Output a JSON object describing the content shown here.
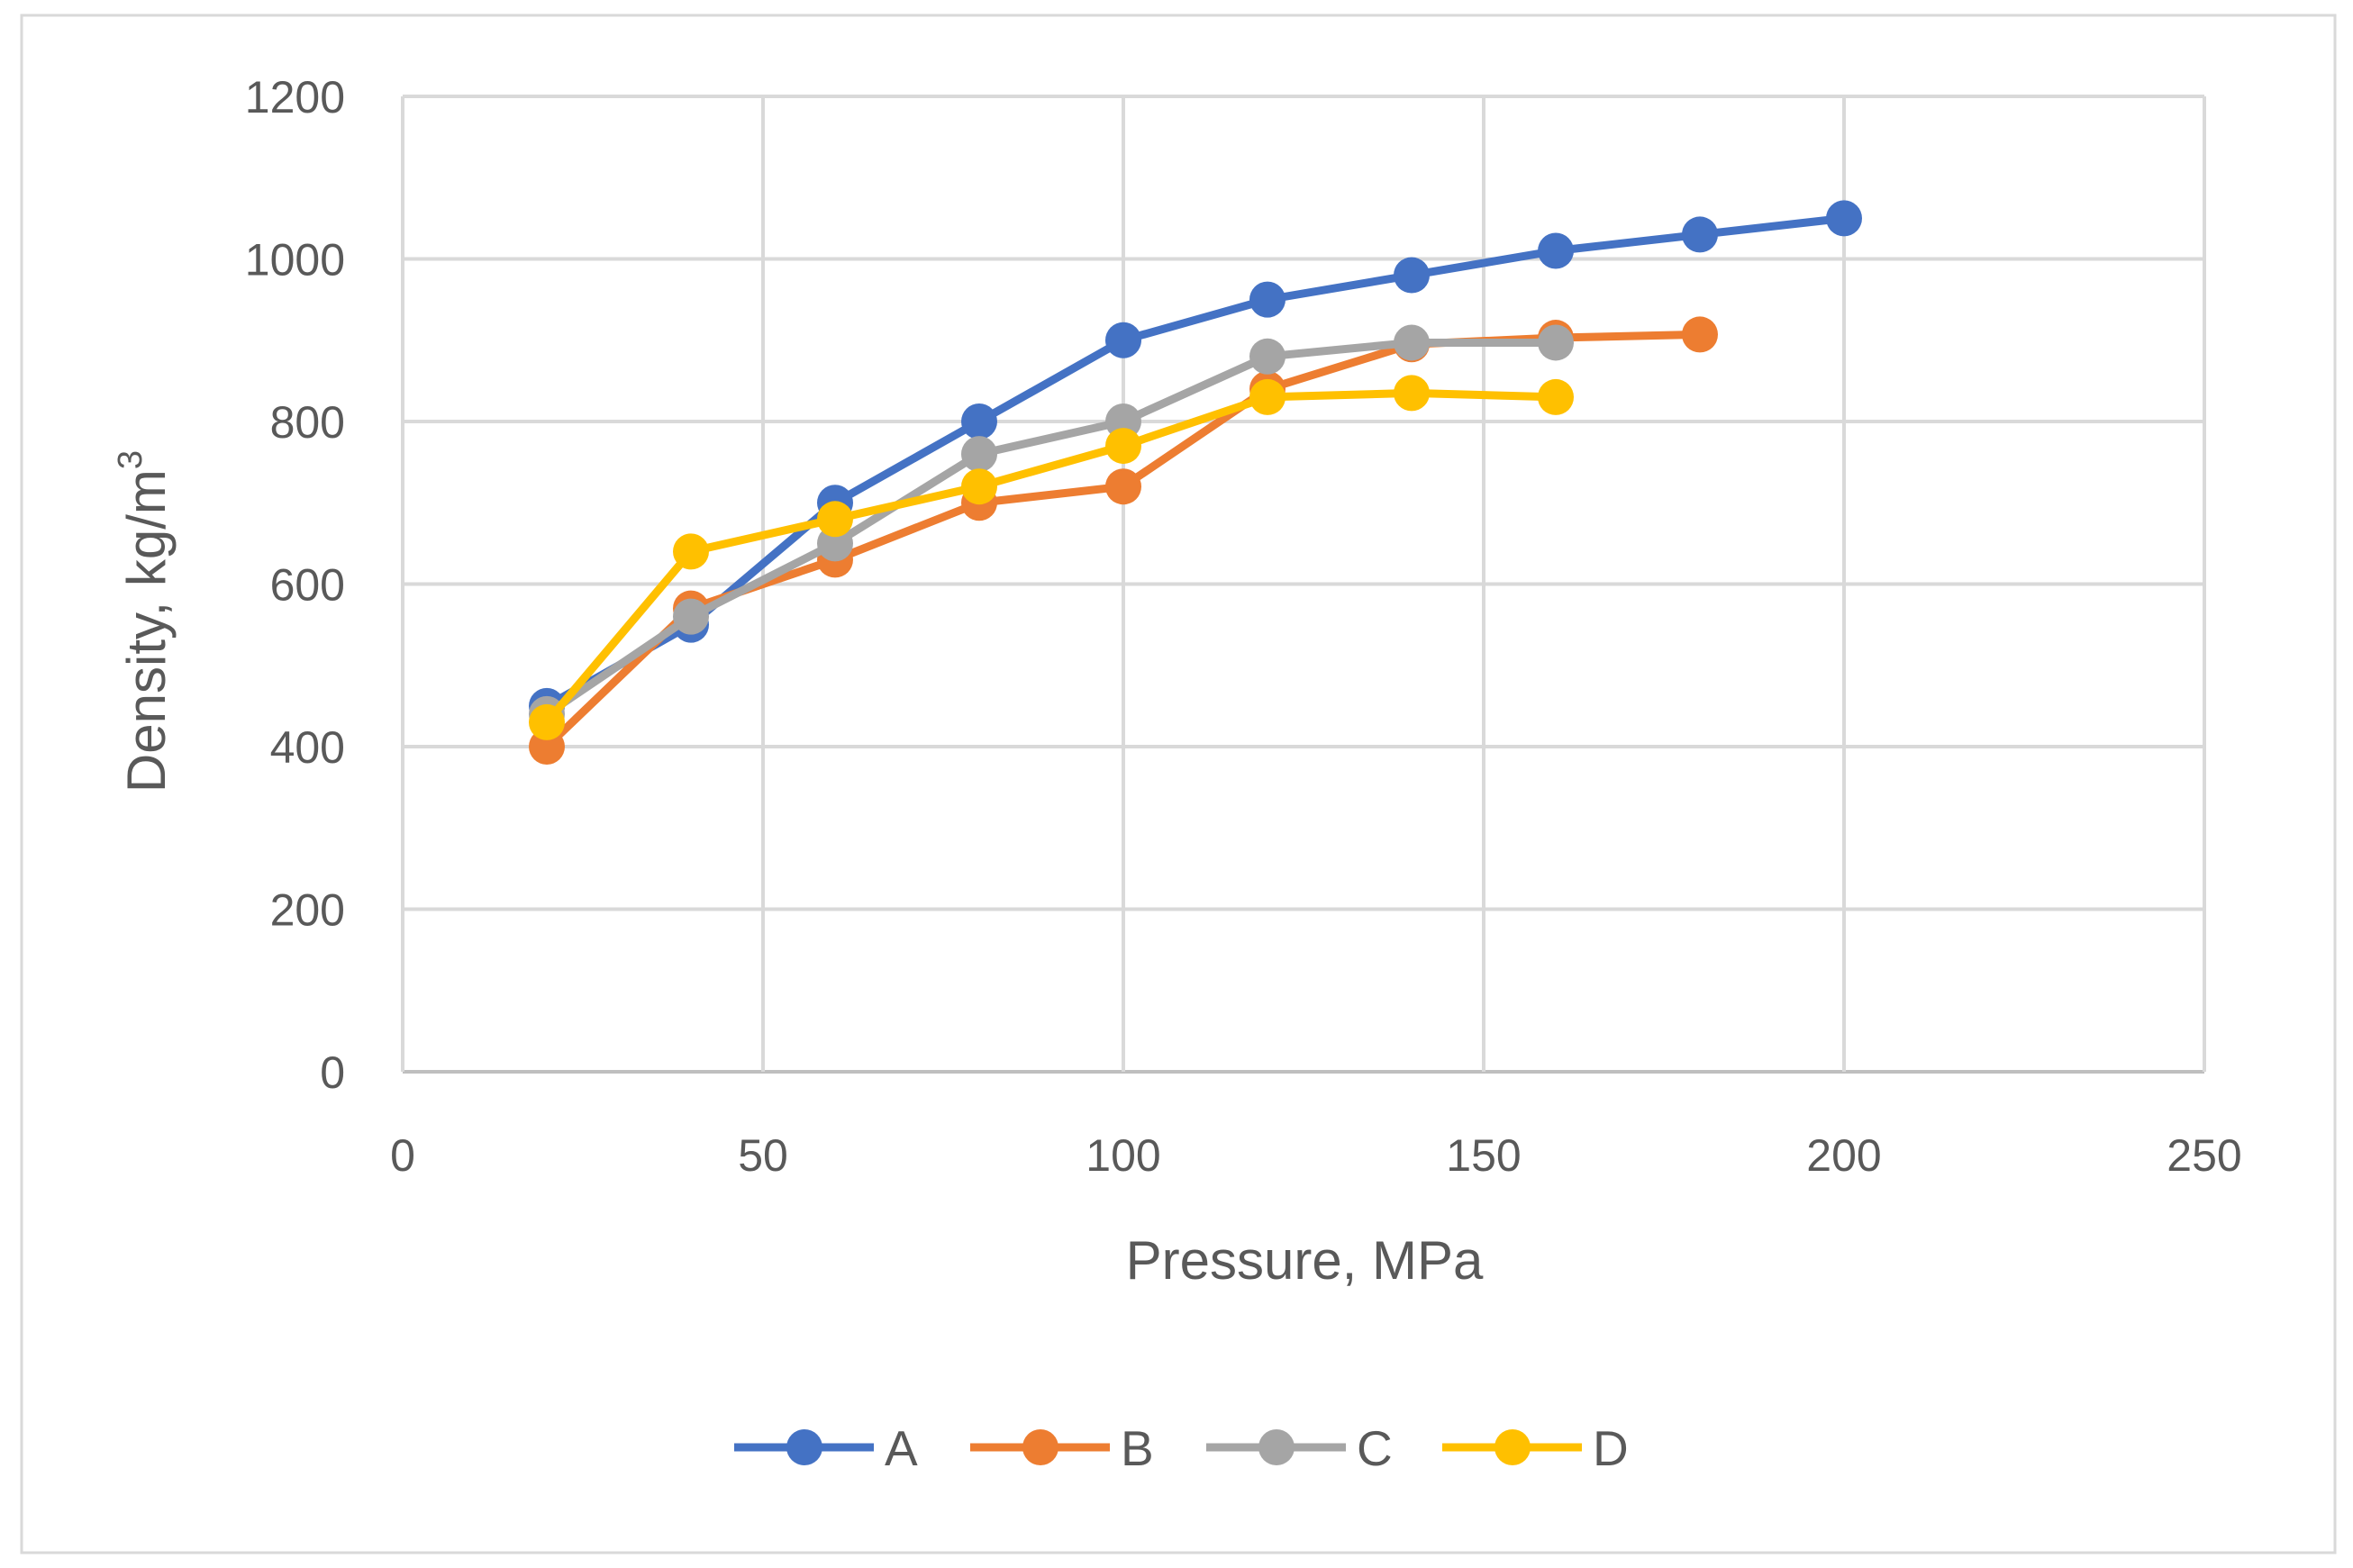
{
  "chart_data": {
    "type": "line",
    "title": "",
    "xlabel": "Pressure, MPa",
    "ylabel_main": "Density, kg/m",
    "ylabel_sup": "3",
    "xlim": [
      0,
      250
    ],
    "ylim": [
      0,
      1200
    ],
    "x_ticks": [
      0,
      50,
      100,
      150,
      200,
      250
    ],
    "y_ticks": [
      0,
      200,
      400,
      600,
      800,
      1000,
      1200
    ],
    "grid": true,
    "legend_position": "bottom",
    "series": [
      {
        "name": "A",
        "color": "#4472C4",
        "x": [
          20,
          40,
          60,
          80,
          100,
          120,
          140,
          160,
          180,
          200
        ],
        "y": [
          450,
          550,
          700,
          800,
          900,
          950,
          980,
          1010,
          1030,
          1050
        ]
      },
      {
        "name": "B",
        "color": "#ED7D31",
        "x": [
          20,
          40,
          60,
          80,
          100,
          120,
          140,
          160,
          180
        ],
        "y": [
          400,
          570,
          630,
          700,
          720,
          840,
          895,
          903,
          907
        ]
      },
      {
        "name": "C",
        "color": "#A5A5A5",
        "x": [
          20,
          40,
          60,
          80,
          100,
          120,
          140,
          160
        ],
        "y": [
          440,
          560,
          650,
          760,
          800,
          880,
          897,
          897
        ]
      },
      {
        "name": "D",
        "color": "#FFC000",
        "x": [
          20,
          40,
          60,
          80,
          100,
          120,
          140,
          160
        ],
        "y": [
          430,
          640,
          680,
          720,
          770,
          830,
          835,
          830
        ]
      }
    ]
  }
}
